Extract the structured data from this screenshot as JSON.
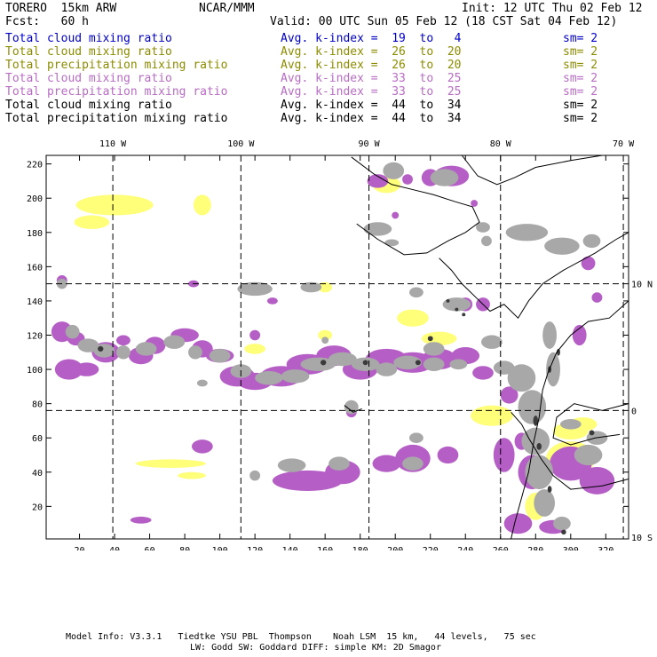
{
  "header": {
    "model": "TORERO  15km ARW",
    "org": "NCAR/MMM",
    "init": "Init: 12 UTC Thu 02 Feb 12",
    "fcst": "Fcst:   60 h",
    "valid": "Valid: 00 UTC Sun 05 Feb 12 (18 CST Sat 04 Feb 12)"
  },
  "legend": [
    {
      "field": "Total cloud mixing ratio",
      "kindex": "Avg. k-index =  19  to   4",
      "sm": "sm= 2",
      "color": "#0000c8"
    },
    {
      "field": "Total cloud mixing ratio",
      "kindex": "Avg. k-index =  26  to  20",
      "sm": "sm= 2",
      "color": "#8c8c00"
    },
    {
      "field": "Total precipitation mixing ratio",
      "kindex": "Avg. k-index =  26  to  20",
      "sm": "sm= 2",
      "color": "#8c8c00"
    },
    {
      "field": "Total cloud mixing ratio",
      "kindex": "Avg. k-index =  33  to  25",
      "sm": "sm= 2",
      "color": "#b86cc4"
    },
    {
      "field": "Total precipitation mixing ratio",
      "kindex": "Avg. k-index =  33  to  25",
      "sm": "sm= 2",
      "color": "#b86cc4"
    },
    {
      "field": "Total cloud mixing ratio",
      "kindex": "Avg. k-index =  44  to  34",
      "sm": "sm= 2",
      "color": "#000000"
    },
    {
      "field": "Total precipitation mixing ratio",
      "kindex": "Avg. k-index =  44  to  34",
      "sm": "sm= 2",
      "color": "#000000"
    }
  ],
  "map": {
    "lon_labels": [
      {
        "label": "110 W",
        "x_index": 39
      },
      {
        "label": "100 W",
        "x_index": 112
      },
      {
        "label": "90 W",
        "x_index": 185
      },
      {
        "label": "80 W",
        "x_index": 260
      },
      {
        "label": "70 W",
        "x_index": 330
      }
    ],
    "lat_labels": [
      {
        "label": "10 N",
        "y_index": 150
      },
      {
        "label": "0",
        "y_index": 76
      },
      {
        "label": "10 S",
        "y_index": 2
      }
    ],
    "x_ticks": [
      20,
      40,
      60,
      80,
      100,
      120,
      140,
      160,
      180,
      200,
      220,
      240,
      260,
      280,
      300,
      320
    ],
    "y_ticks": [
      20,
      40,
      60,
      80,
      100,
      120,
      140,
      160,
      180,
      200,
      220
    ],
    "x_range": [
      1,
      333
    ],
    "y_range": [
      1,
      225
    ],
    "colors": {
      "yellow": "#ffff7a",
      "purple": "#b55fc6",
      "gray": "#a8a8a8",
      "dark": "#3a3a3a"
    }
  },
  "footer": {
    "line1": "Model Info: V3.3.1   Tiedtke YSU PBL  Thompson    Noah LSM  15 km,   44 levels,   75 sec",
    "line2": "LW: Godd SW: Goddard DIFF: simple KM: 2D Smagor"
  }
}
